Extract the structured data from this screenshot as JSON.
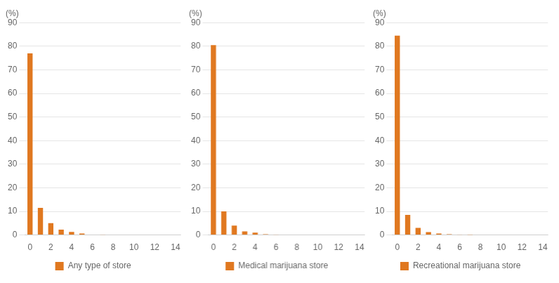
{
  "chart_data": [
    {
      "type": "bar",
      "ylabel": "(%)",
      "x": [
        0,
        1,
        2,
        3,
        4,
        5,
        6,
        7
      ],
      "series": [
        {
          "name": "Any type of store",
          "color": "#E07820",
          "values": [
            77,
            11.5,
            5,
            2.3,
            1.3,
            0.6,
            0.2,
            0.1
          ]
        }
      ],
      "xlim": [
        -0.5,
        14.5
      ],
      "xticks": [
        0,
        2,
        4,
        6,
        8,
        10,
        12,
        14
      ],
      "ylim": [
        0,
        90
      ],
      "yticks": [
        0,
        10,
        20,
        30,
        40,
        50,
        60,
        70,
        80,
        90
      ],
      "grid": true,
      "legend": "bottom"
    },
    {
      "type": "bar",
      "ylabel": "(%)",
      "x": [
        0,
        1,
        2,
        3,
        4,
        5,
        6
      ],
      "series": [
        {
          "name": "Medical marijuana store",
          "color": "#E07820",
          "values": [
            80.5,
            10,
            4,
            1.5,
            1.0,
            0.3,
            0.1
          ]
        }
      ],
      "xlim": [
        -0.5,
        14.5
      ],
      "xticks": [
        0,
        2,
        4,
        6,
        8,
        10,
        12,
        14
      ],
      "ylim": [
        0,
        90
      ],
      "yticks": [
        0,
        10,
        20,
        30,
        40,
        50,
        60,
        70,
        80,
        90
      ],
      "grid": true,
      "legend": "bottom"
    },
    {
      "type": "bar",
      "ylabel": "(%)",
      "x": [
        0,
        1,
        2,
        3,
        4,
        5,
        6,
        7
      ],
      "series": [
        {
          "name": "Recreational marijuana store",
          "color": "#E07820",
          "values": [
            84.5,
            8.5,
            3,
            1.2,
            0.6,
            0.3,
            0.1,
            0.05
          ]
        }
      ],
      "xlim": [
        -0.5,
        14.5
      ],
      "xticks": [
        0,
        2,
        4,
        6,
        8,
        10,
        12,
        14
      ],
      "ylim": [
        0,
        90
      ],
      "yticks": [
        0,
        10,
        20,
        30,
        40,
        50,
        60,
        70,
        80,
        90
      ],
      "grid": true,
      "legend": "bottom"
    }
  ]
}
